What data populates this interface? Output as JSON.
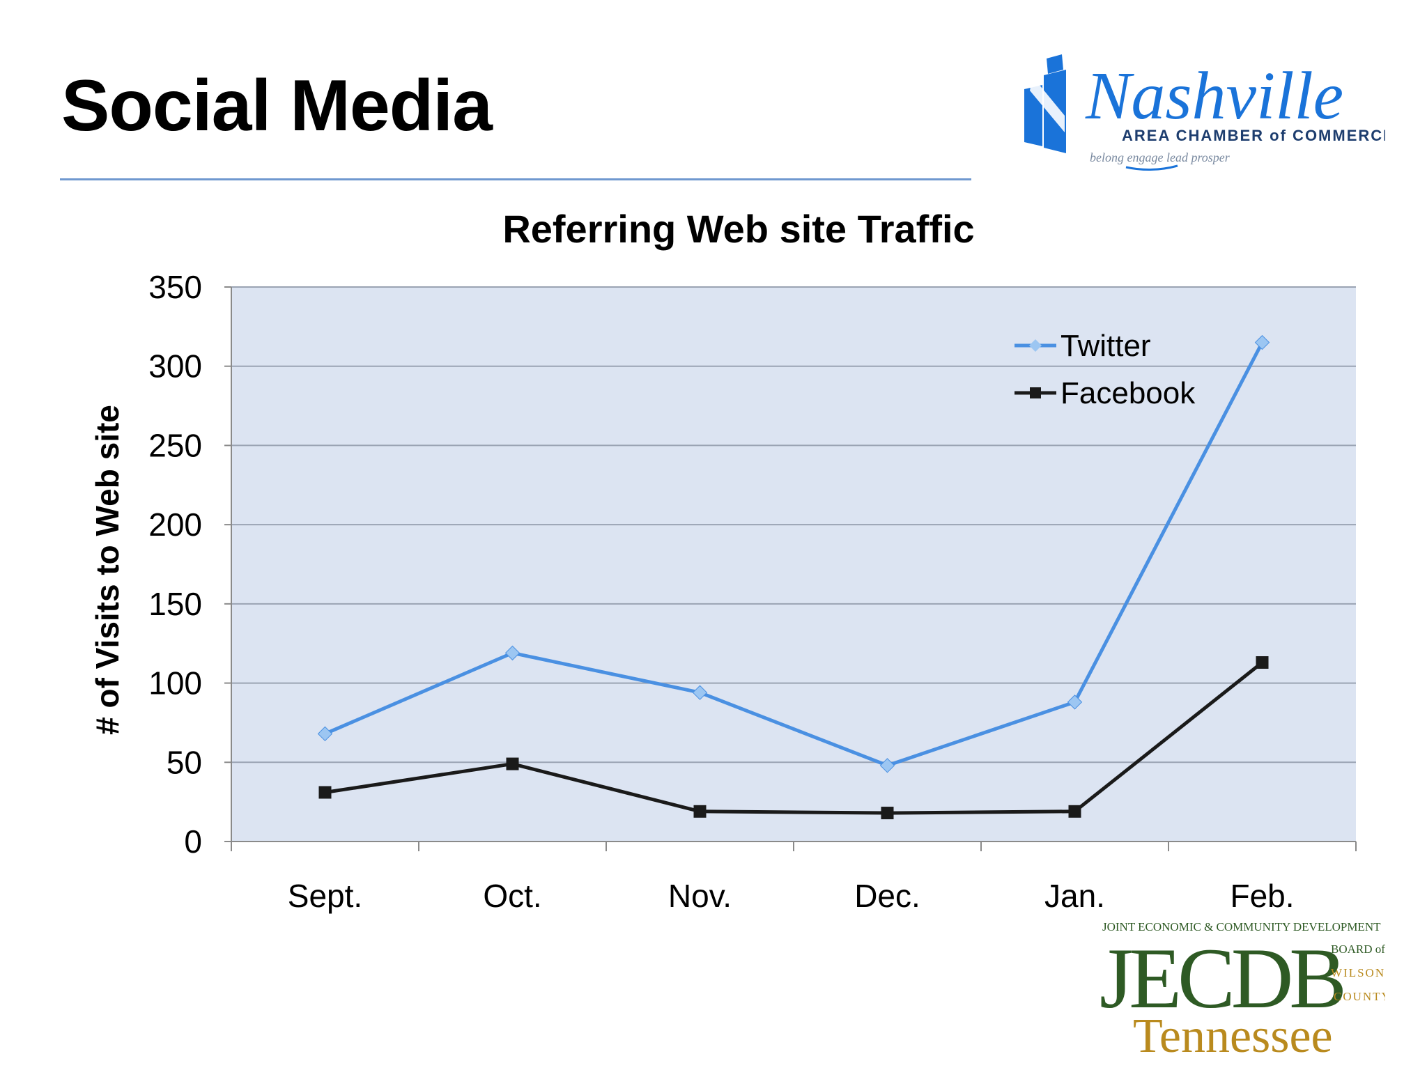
{
  "slide": {
    "title": "Social Media"
  },
  "logos": {
    "nashville": {
      "wordmark": "Nashville",
      "line1": "AREA CHAMBER of COMMERCE",
      "tagline": "belong engage lead prosper",
      "brand_color": "#1a73d9"
    },
    "jecdb": {
      "top_line": "JOINT ECONOMIC & COMMUNITY DEVELOPMENT",
      "letters": "JECDB",
      "board_line1": "BOARD of",
      "board_line2": "WILSON",
      "board_line3": "COUNTY",
      "state": "Tennessee",
      "green": "#2e5a24",
      "gold": "#b98a1e"
    }
  },
  "chart_data": {
    "type": "line",
    "title": "Referring Web site Traffic",
    "xlabel": "",
    "ylabel": "# of Visits to Web site",
    "categories": [
      "Sept.",
      "Oct.",
      "Nov.",
      "Dec.",
      "Jan.",
      "Feb."
    ],
    "ylim": [
      0,
      350
    ],
    "yticks": [
      0,
      50,
      100,
      150,
      200,
      250,
      300,
      350
    ],
    "grid": true,
    "legend": "top-right",
    "plot_background": "#dce4f2",
    "series": [
      {
        "name": "Twitter",
        "values": [
          68,
          119,
          94,
          48,
          88,
          315
        ],
        "color": "#4a90e2",
        "marker": "diamond"
      },
      {
        "name": "Facebook",
        "values": [
          31,
          49,
          19,
          18,
          19,
          113
        ],
        "color": "#1a1a1a",
        "marker": "square"
      }
    ]
  }
}
